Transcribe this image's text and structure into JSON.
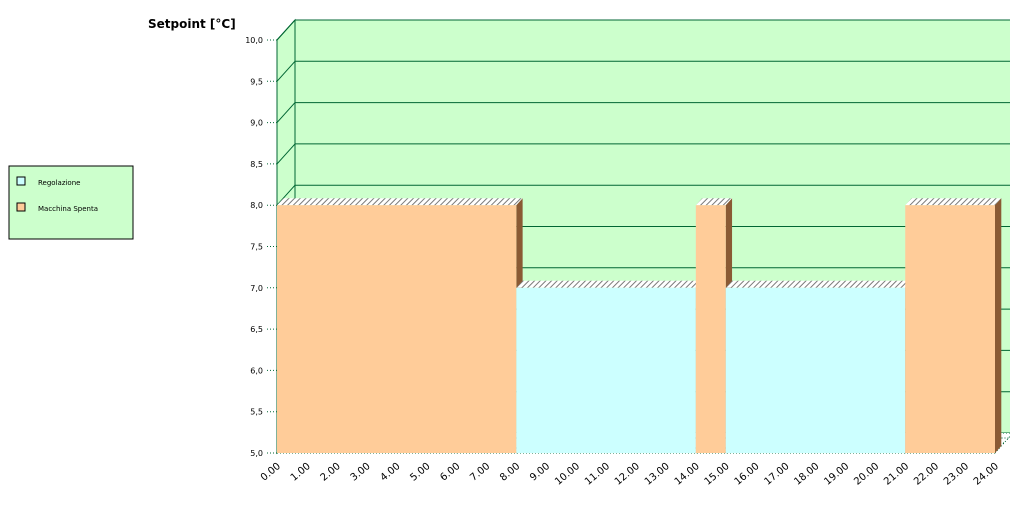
{
  "chart_data": {
    "type": "area",
    "title": "",
    "ylabel": "Setpoint [°C]",
    "xlabel": "",
    "ylim": [
      5.0,
      10.0
    ],
    "yticks": [
      "5,0",
      "5,5",
      "6,0",
      "6,5",
      "7,0",
      "7,5",
      "8,0",
      "8,5",
      "9,0",
      "9,5",
      "10,0"
    ],
    "xticks": [
      "0.00",
      "1.00",
      "2.00",
      "3.00",
      "4.00",
      "5.00",
      "6.00",
      "7.00",
      "8.00",
      "9.00",
      "10.00",
      "11.00",
      "12.00",
      "13.00",
      "14.00",
      "15.00",
      "16.00",
      "17.00",
      "18.00",
      "19.00",
      "20.00",
      "21.00",
      "22.00",
      "23.00",
      "24.00"
    ],
    "grid": true,
    "legend_position": "left",
    "series": [
      {
        "name": "Regolazione",
        "color": "#ccffff",
        "segments": [
          {
            "start": 8.0,
            "end": 14.0,
            "value": 7.0
          },
          {
            "start": 15.0,
            "end": 21.0,
            "value": 7.0
          }
        ]
      },
      {
        "name": "Macchina Spenta",
        "color": "#ffcc99",
        "segments": [
          {
            "start": 0.0,
            "end": 8.0,
            "value": 8.0
          },
          {
            "start": 14.0,
            "end": 15.0,
            "value": 8.0
          },
          {
            "start": 21.0,
            "end": 24.0,
            "value": 8.0
          }
        ]
      }
    ],
    "colors": {
      "background": "#ccffcc",
      "gridline": "#006633",
      "side_shade": "#8a5a34"
    }
  }
}
